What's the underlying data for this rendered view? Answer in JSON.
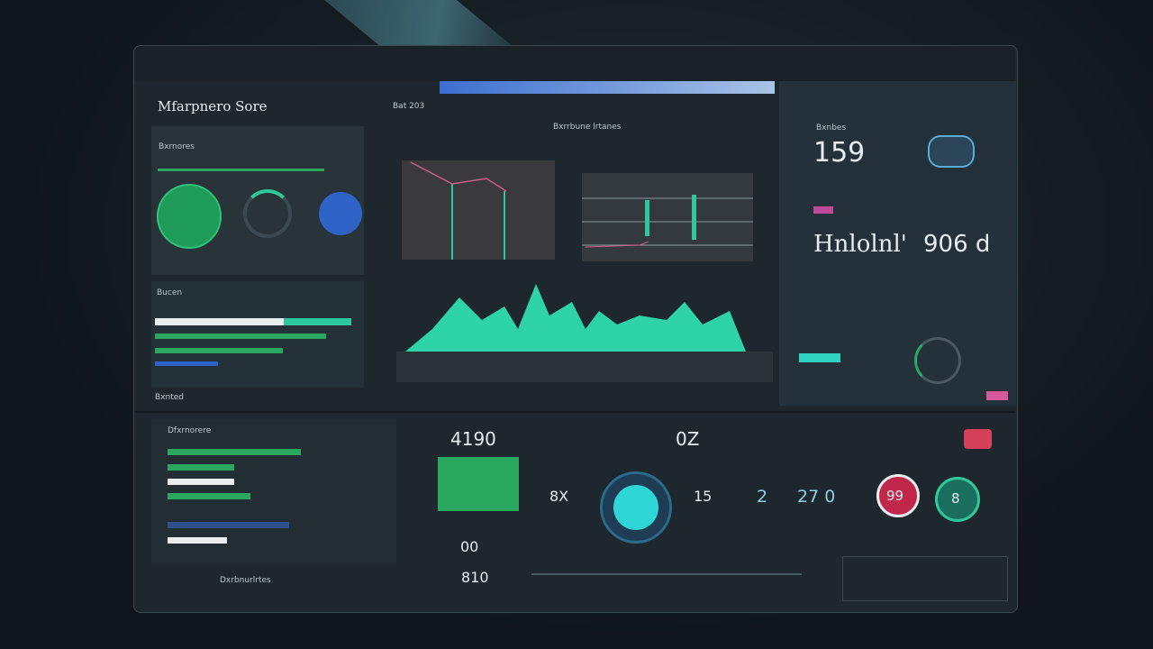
{
  "header": {
    "title": "Mfarpnero Sore",
    "subtitle": "Bat 203"
  },
  "left": {
    "card_label": "Bxrnores",
    "bars_label": "Bucen",
    "footer_label": "Bxnted"
  },
  "middle": {
    "chart_title": "Bxrrbune lrtanes"
  },
  "right": {
    "label_top": "Bxnbes",
    "metric_a": "159",
    "metric_b": "Hnlolnl'",
    "metric_c": "906 d"
  },
  "bottom": {
    "list_label": "Dfxrnorere",
    "list_footer": "Dxrbnurlrtes",
    "metric_main": "4190",
    "box_metric_a": "00",
    "box_metric_b": "810",
    "center_label": "0Z",
    "stat_a": "8X",
    "stat_b": "15",
    "stat_c": "2",
    "stat_d": "27 0",
    "badge_a": "99",
    "badge_b": "8"
  }
}
